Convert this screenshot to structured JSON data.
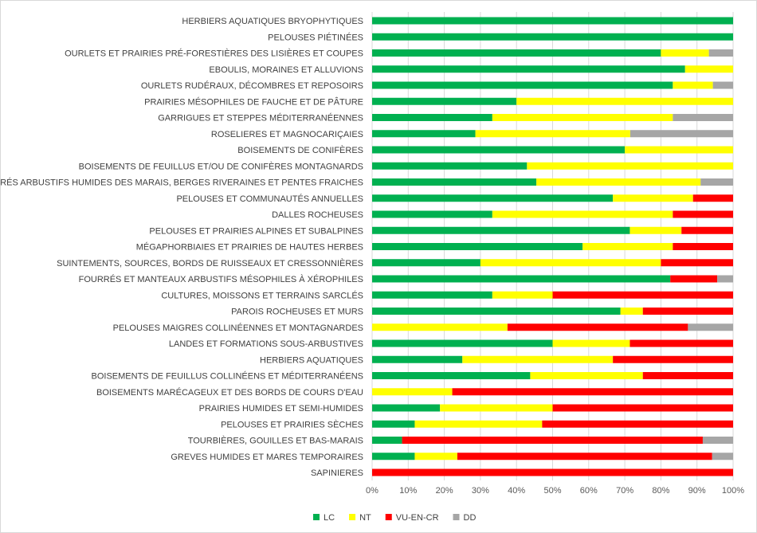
{
  "chart_data": {
    "type": "bar",
    "orientation": "horizontal",
    "stacked": "percent",
    "title": "",
    "xlabel": "",
    "ylabel": "",
    "xlim": [
      0,
      100
    ],
    "grid": true,
    "legend_position": "bottom-left",
    "tick_labels": [
      "0%",
      "10%",
      "20%",
      "30%",
      "40%",
      "50%",
      "60%",
      "70%",
      "80%",
      "90%",
      "100%"
    ],
    "categories": [
      "HERBIERS AQUATIQUES BRYOPHYTIQUES",
      "PELOUSES PIÉTINÉES",
      "OURLETS ET PRAIRIES PRÉ-FORESTIÈRES DES LISIÈRES ET COUPES",
      "EBOULIS, MORAINES ET ALLUVIONS",
      "OURLETS RUDÉRAUX, DÉCOMBRES ET REPOSOIRS",
      "PRAIRIES MÉSOPHILES DE FAUCHE ET DE PÂTURE",
      "GARRIGUES ET STEPPES MÉDITERRANÉENNES",
      "ROSELIERES ET MAGNOCARIÇAIES",
      "BOISEMENTS DE CONIFÈRES",
      "BOISEMENTS DE FEUILLUS ET/OU DE CONIFÈRES MONTAGNARDS",
      "FOURRÉS ARBUSTIFS HUMIDES DES MARAIS, BERGES RIVERAINES ET PENTES FRAICHES",
      "PELOUSES ET COMMUNAUTÉS ANNUELLES",
      "DALLES ROCHEUSES",
      "PELOUSES ET PRAIRIES ALPINES ET SUBALPINES",
      "MÉGAPHORBIAIES ET PRAIRIES DE HAUTES HERBES",
      "SUINTEMENTS, SOURCES, BORDS DE RUISSEAUX ET CRESSONNIÈRES",
      "FOURRÉS ET MANTEAUX ARBUSTIFS MÉSOPHILES À XÉROPHILES",
      "CULTURES, MOISSONS ET TERRAINS SARCLÉS",
      "PAROIS ROCHEUSES ET MURS",
      "PELOUSES MAIGRES COLLINÉENNES ET MONTAGNARDES",
      "LANDES ET FORMATIONS SOUS-ARBUSTIVES",
      "HERBIERS AQUATIQUES",
      "BOISEMENTS DE FEUILLUS COLLINÉENS ET MÉDITERRANÉENS",
      "BOISEMENTS MARÉCAGEUX ET DES BORDS DE COURS D'EAU",
      "PRAIRIES HUMIDES ET SEMI-HUMIDES",
      "PELOUSES ET PRAIRIES SÈCHES",
      "TOURBIÈRES, GOUILLES ET BAS-MARAIS",
      "GREVES HUMIDES ET MARES TEMPORAIRES",
      "SAPINIERES"
    ],
    "series": [
      {
        "name": "LC",
        "color": "#00b050",
        "values": [
          100,
          100,
          80,
          86.7,
          83.3,
          40,
          33.3,
          28.6,
          70,
          42.9,
          45.5,
          66.7,
          33.3,
          71.4,
          58.3,
          30,
          82.6,
          33.3,
          68.8,
          0,
          50,
          25,
          43.8,
          0,
          18.8,
          11.8,
          8.3,
          11.8,
          0
        ]
      },
      {
        "name": "NT",
        "color": "#ffff00",
        "values": [
          0,
          0,
          13.3,
          13.3,
          11.1,
          60,
          50,
          42.9,
          30,
          57.1,
          45.5,
          22.2,
          50,
          14.3,
          25,
          50,
          0,
          16.7,
          6.2,
          37.5,
          21.4,
          41.7,
          31.2,
          22.2,
          31.2,
          35.3,
          0,
          11.8,
          0
        ]
      },
      {
        "name": "VU-EN-CR",
        "color": "#ff0000",
        "values": [
          0,
          0,
          0,
          0,
          0,
          0,
          0,
          0,
          0,
          0,
          0,
          11.1,
          16.7,
          14.3,
          16.7,
          20,
          13,
          50,
          25,
          50,
          28.6,
          33.3,
          25,
          77.8,
          50,
          52.9,
          83.3,
          70.6,
          100
        ]
      },
      {
        "name": "DD",
        "color": "#a6a6a6",
        "values": [
          0,
          0,
          6.7,
          0,
          5.6,
          0,
          16.7,
          28.5,
          0,
          0,
          9,
          0,
          0,
          0,
          0,
          0,
          4.4,
          0,
          0,
          12.5,
          0,
          0,
          0,
          0,
          0,
          0,
          8.4,
          5.8,
          0
        ]
      }
    ]
  }
}
